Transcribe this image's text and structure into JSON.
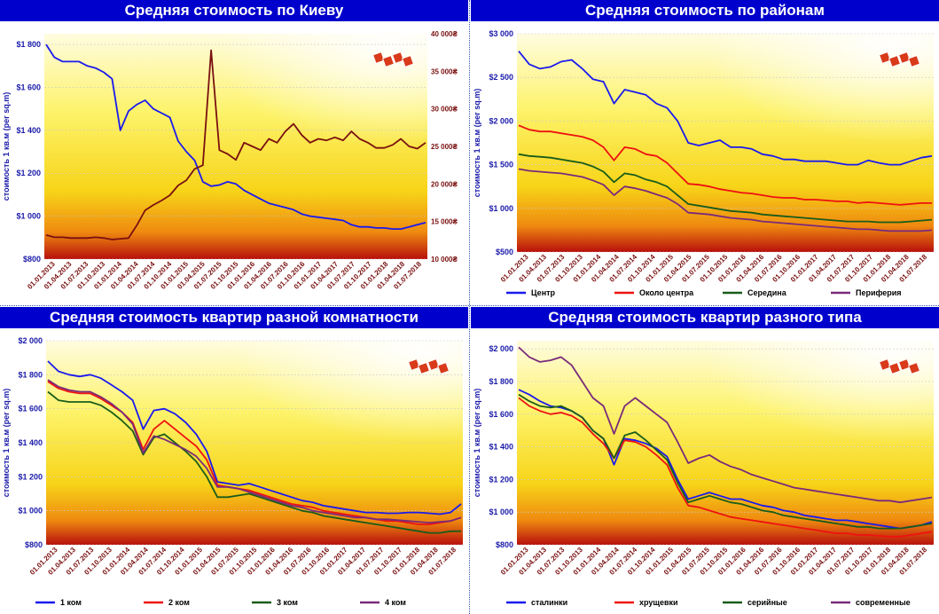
{
  "charts": [
    {
      "id": "kiev",
      "title": "Средняя стоимость по Киеву",
      "type": "line",
      "ylabel": "стоимость 1 кв.м (per sq.m)",
      "left_ticks": [
        "$800",
        "$1 000",
        "$1 200",
        "$1 400",
        "$1 600",
        "$1 800"
      ],
      "ylim": [
        800,
        1850
      ],
      "right_ticks": [
        "10 000₴",
        "15 000₴",
        "20 000₴",
        "25 000₴",
        "30 000₴",
        "35 000₴",
        "40 000₴"
      ],
      "y2lim": [
        10000,
        40000
      ],
      "x_ticks": [
        "01.01.2013",
        "01.04.2013",
        "01.07.2013",
        "01.10.2013",
        "01.01.2014",
        "01.04.2014",
        "01.07.2014",
        "01.10.2014",
        "01.01.2015",
        "01.04.2015",
        "01.07.2015",
        "01.10.2015",
        "01.01.2016",
        "01.04.2016",
        "01.07.2016",
        "01.10.2016",
        "01.01.2017",
        "01.04.2017",
        "01.07.2017",
        "01.10.2017",
        "01.01.2018",
        "01.04.2018",
        "01.07.2018"
      ],
      "series": [
        {
          "axis": "left",
          "color": "#1a1aee",
          "values": [
            1800,
            1740,
            1720,
            1720,
            1720,
            1700,
            1690,
            1670,
            1640,
            1400,
            1490,
            1520,
            1540,
            1500,
            1480,
            1460,
            1350,
            1300,
            1260,
            1160,
            1140,
            1145,
            1160,
            1150,
            1120,
            1100,
            1080,
            1060,
            1050,
            1040,
            1030,
            1010,
            1000,
            995,
            990,
            985,
            980,
            960,
            950,
            950,
            945,
            945,
            940,
            940,
            950,
            960,
            970
          ]
        },
        {
          "axis": "right",
          "color": "#7a1010",
          "values": [
            13200,
            12900,
            12900,
            12800,
            12800,
            12800,
            12900,
            12800,
            12600,
            12700,
            12800,
            14500,
            16500,
            17200,
            17800,
            18500,
            19800,
            20500,
            22000,
            22500,
            37800,
            24500,
            24000,
            23200,
            25500,
            25000,
            24500,
            26000,
            25500,
            27000,
            28000,
            26500,
            25500,
            26000,
            25800,
            26200,
            25800,
            27000,
            26000,
            25500,
            24800,
            24800,
            25200,
            26000,
            25000,
            24700,
            25500
          ]
        }
      ],
      "legend": []
    },
    {
      "id": "districts",
      "title": "Средняя стоимость по районам",
      "type": "line",
      "ylabel": "стоимость 1 кв.м (per sq.m)",
      "left_ticks": [
        "$500",
        "$1 000",
        "$1 500",
        "$2 000",
        "$2 500",
        "$3 000"
      ],
      "ylim": [
        500,
        3000
      ],
      "x_ticks": [
        "01.01.2013",
        "01.04.2013",
        "01.07.2013",
        "01.10.2013",
        "01.01.2014",
        "01.04.2014",
        "01.07.2014",
        "01.10.2014",
        "01.01.2015",
        "01.04.2015",
        "01.07.2015",
        "01.10.2015",
        "01.01.2016",
        "01.04.2016",
        "01.07.2016",
        "01.10.2016",
        "01.01.2017",
        "01.04.2017",
        "01.07.2017",
        "01.10.2017",
        "01.01.2018",
        "01.04.2018",
        "01.07.2018"
      ],
      "series": [
        {
          "name": "Центр",
          "color": "#1a1aee",
          "values": [
            2800,
            2650,
            2600,
            2620,
            2680,
            2700,
            2600,
            2480,
            2450,
            2200,
            2360,
            2330,
            2300,
            2200,
            2150,
            2000,
            1750,
            1720,
            1750,
            1780,
            1700,
            1700,
            1680,
            1620,
            1600,
            1560,
            1560,
            1540,
            1540,
            1540,
            1520,
            1500,
            1500,
            1550,
            1520,
            1500,
            1500,
            1540,
            1580,
            1600
          ]
        },
        {
          "name": "Около центра",
          "color": "#ee1111",
          "values": [
            1950,
            1900,
            1880,
            1880,
            1860,
            1840,
            1820,
            1780,
            1700,
            1550,
            1700,
            1680,
            1620,
            1600,
            1520,
            1400,
            1280,
            1270,
            1250,
            1220,
            1200,
            1180,
            1170,
            1150,
            1130,
            1120,
            1120,
            1100,
            1100,
            1090,
            1080,
            1080,
            1060,
            1070,
            1060,
            1050,
            1040,
            1050,
            1060,
            1060
          ]
        },
        {
          "name": "Середина",
          "color": "#1a5c1a",
          "values": [
            1620,
            1600,
            1590,
            1580,
            1560,
            1540,
            1520,
            1480,
            1420,
            1300,
            1400,
            1380,
            1330,
            1300,
            1250,
            1150,
            1050,
            1030,
            1010,
            990,
            970,
            960,
            950,
            930,
            920,
            910,
            900,
            890,
            880,
            870,
            860,
            850,
            850,
            850,
            840,
            840,
            840,
            850,
            860,
            870
          ]
        },
        {
          "name": "Периферия",
          "color": "#7a2a7a",
          "values": [
            1450,
            1430,
            1420,
            1410,
            1400,
            1380,
            1360,
            1320,
            1270,
            1150,
            1250,
            1230,
            1200,
            1160,
            1120,
            1050,
            950,
            940,
            930,
            910,
            890,
            880,
            870,
            850,
            840,
            830,
            820,
            810,
            800,
            790,
            780,
            770,
            760,
            760,
            750,
            740,
            740,
            740,
            740,
            750
          ]
        }
      ],
      "legend": [
        "Центр",
        "Около центра",
        "Середина",
        "Периферия"
      ]
    },
    {
      "id": "rooms",
      "title": "Средняя стоимость квартир разной комнатности",
      "type": "line",
      "ylabel": "стоимость 1 кв.м (per sq.m)",
      "left_ticks": [
        "$800",
        "$1 000",
        "$1 200",
        "$1 400",
        "$1 600",
        "$1 800",
        "$2 000"
      ],
      "ylim": [
        800,
        2000
      ],
      "x_ticks": [
        "01.01.2013",
        "01.04.2013",
        "01.07.2013",
        "01.10.2013",
        "01.01.2014",
        "01.04.2014",
        "01.07.2014",
        "01.10.2014",
        "01.01.2015",
        "01.04.2015",
        "01.07.2015",
        "01.10.2015",
        "01.01.2016",
        "01.04.2016",
        "01.07.2016",
        "01.10.2016",
        "01.01.2017",
        "01.04.2017",
        "01.07.2017",
        "01.10.2017",
        "01.01.2018",
        "01.04.2018",
        "01.07.2018"
      ],
      "series": [
        {
          "name": "1 ком",
          "color": "#1a1aee",
          "values": [
            1880,
            1820,
            1800,
            1790,
            1800,
            1780,
            1740,
            1700,
            1650,
            1480,
            1590,
            1600,
            1570,
            1520,
            1450,
            1350,
            1170,
            1160,
            1150,
            1160,
            1140,
            1120,
            1100,
            1080,
            1060,
            1050,
            1030,
            1020,
            1010,
            1000,
            990,
            990,
            985,
            985,
            990,
            990,
            985,
            980,
            990,
            1040
          ]
        },
        {
          "name": "2 ком",
          "color": "#ee1111",
          "values": [
            1760,
            1720,
            1700,
            1690,
            1690,
            1660,
            1620,
            1580,
            1520,
            1360,
            1480,
            1530,
            1480,
            1430,
            1380,
            1300,
            1150,
            1140,
            1130,
            1120,
            1100,
            1080,
            1060,
            1040,
            1030,
            1020,
            1000,
            990,
            980,
            970,
            960,
            950,
            940,
            940,
            930,
            920,
            920,
            930,
            940,
            960
          ]
        },
        {
          "name": "3 ком",
          "color": "#1a5c1a",
          "values": [
            1700,
            1650,
            1640,
            1640,
            1640,
            1620,
            1580,
            1530,
            1470,
            1330,
            1430,
            1450,
            1400,
            1350,
            1290,
            1200,
            1080,
            1080,
            1090,
            1100,
            1080,
            1060,
            1040,
            1020,
            1000,
            990,
            970,
            960,
            950,
            940,
            930,
            920,
            910,
            900,
            890,
            880,
            870,
            870,
            880,
            880
          ]
        },
        {
          "name": "4 ком",
          "color": "#7a2a7a",
          "values": [
            1770,
            1730,
            1710,
            1700,
            1700,
            1670,
            1630,
            1580,
            1510,
            1340,
            1440,
            1420,
            1390,
            1360,
            1320,
            1250,
            1140,
            1140,
            1130,
            1110,
            1090,
            1070,
            1050,
            1030,
            1020,
            1000,
            990,
            980,
            970,
            960,
            960,
            950,
            950,
            945,
            940,
            935,
            930,
            935,
            940,
            960
          ]
        }
      ],
      "legend": [
        "1 ком",
        "2 ком",
        "3 ком",
        "4 ком"
      ]
    },
    {
      "id": "types",
      "title": "Средняя стоимость квартир разного типа",
      "type": "line",
      "ylabel": "стоимость 1 кв.м (per sq.m)",
      "left_ticks": [
        "$800",
        "$1 000",
        "$1 200",
        "$1 400",
        "$1 600",
        "$1 800",
        "$2 000"
      ],
      "ylim": [
        800,
        2050
      ],
      "x_ticks": [
        "01.01.2013",
        "01.04.2013",
        "01.07.2013",
        "01.10.2013",
        "01.01.2014",
        "01.04.2014",
        "01.07.2014",
        "01.10.2014",
        "01.01.2015",
        "01.04.2015",
        "01.07.2015",
        "01.10.2015",
        "01.01.2016",
        "01.04.2016",
        "01.07.2016",
        "01.10.2016",
        "01.01.2017",
        "01.04.2017",
        "01.07.2017",
        "01.10.2017",
        "01.01.2018",
        "01.04.2018",
        "01.07.2018"
      ],
      "series": [
        {
          "name": "сталинки",
          "color": "#1a1aee",
          "values": [
            1750,
            1720,
            1680,
            1650,
            1640,
            1620,
            1580,
            1500,
            1450,
            1290,
            1450,
            1440,
            1420,
            1390,
            1340,
            1200,
            1080,
            1100,
            1120,
            1100,
            1080,
            1080,
            1060,
            1040,
            1030,
            1010,
            1000,
            980,
            970,
            960,
            950,
            950,
            940,
            930,
            920,
            910,
            900,
            910,
            920,
            940
          ]
        },
        {
          "name": "хрущевки",
          "color": "#ee1111",
          "values": [
            1700,
            1650,
            1620,
            1600,
            1610,
            1590,
            1550,
            1480,
            1420,
            1330,
            1440,
            1430,
            1400,
            1350,
            1290,
            1150,
            1040,
            1030,
            1010,
            990,
            970,
            960,
            950,
            940,
            930,
            920,
            910,
            900,
            890,
            880,
            870,
            870,
            860,
            860,
            855,
            850,
            850,
            860,
            870,
            880
          ]
        },
        {
          "name": "серийные",
          "color": "#1a5c1a",
          "values": [
            1720,
            1680,
            1650,
            1640,
            1650,
            1620,
            1580,
            1500,
            1450,
            1330,
            1470,
            1490,
            1440,
            1380,
            1320,
            1180,
            1060,
            1080,
            1100,
            1080,
            1060,
            1050,
            1030,
            1010,
            1000,
            980,
            970,
            960,
            950,
            940,
            930,
            920,
            910,
            910,
            900,
            900,
            900,
            910,
            920,
            930
          ]
        },
        {
          "name": "современные",
          "color": "#7a2a7a",
          "values": [
            2010,
            1950,
            1920,
            1930,
            1950,
            1900,
            1800,
            1700,
            1650,
            1480,
            1650,
            1700,
            1650,
            1600,
            1550,
            1430,
            1300,
            1330,
            1350,
            1310,
            1280,
            1260,
            1230,
            1210,
            1190,
            1170,
            1150,
            1140,
            1130,
            1120,
            1110,
            1100,
            1090,
            1080,
            1070,
            1070,
            1060,
            1070,
            1080,
            1090
          ]
        }
      ],
      "legend": [
        "сталинки",
        "хрущевки",
        "серийные",
        "современные"
      ]
    }
  ]
}
